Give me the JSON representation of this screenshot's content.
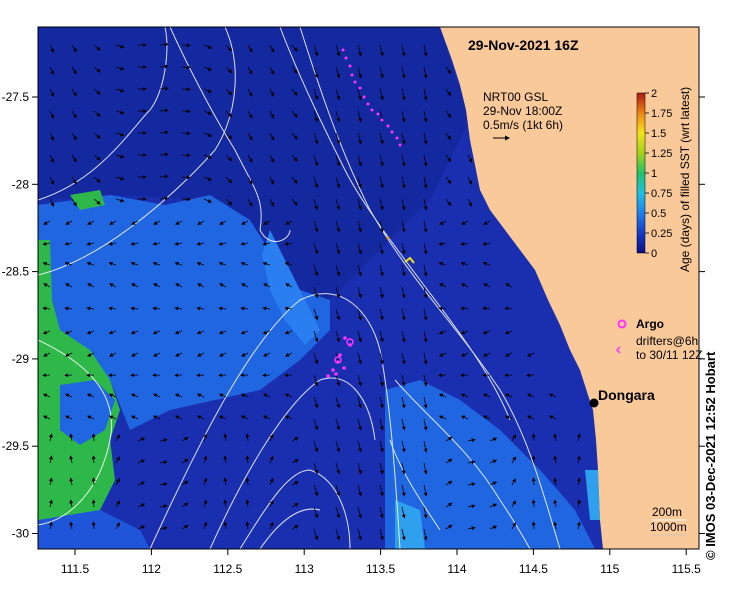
{
  "map": {
    "title": "29-Nov-2021 16Z",
    "current_note": {
      "line1": "NRT00 GSL",
      "line2": "29-Nov 18:00Z",
      "line3": "0.5m/s (1kt 6h)"
    },
    "place": "Dongara",
    "legend": {
      "argo": "Argo",
      "drifters_line1": "drifters@6h",
      "drifters_line2": "to 30/11 12Z"
    },
    "bathymetry": {
      "label1": "200m",
      "label2": "1000m"
    },
    "colorbar": {
      "label": "Age (days) of filled SST (wrt latest)",
      "ticks": [
        "2",
        "1.75",
        "1.5",
        "1.25",
        "1",
        "0.75",
        "0.5",
        "0.25",
        "0"
      ]
    },
    "x_ticks": [
      "111.5",
      "112",
      "112.5",
      "113",
      "113.5",
      "114",
      "114.5",
      "115",
      "115.5"
    ],
    "y_ticks": [
      "-27.5",
      "-28",
      "-28.5",
      "-29",
      "-29.5",
      "-30"
    ],
    "credit": "©  IMOS 03-Dec-2021 12:52 Hobart",
    "colors": {
      "ocean_deep": "#1a2fb0",
      "ocean_mid": "#1f66e0",
      "ocean_light": "#2f95ee",
      "green_patch": "#2eb84a",
      "land": "#f9c99a",
      "argo_marker": "#ff33ff",
      "contour": "#ffffff"
    }
  }
}
